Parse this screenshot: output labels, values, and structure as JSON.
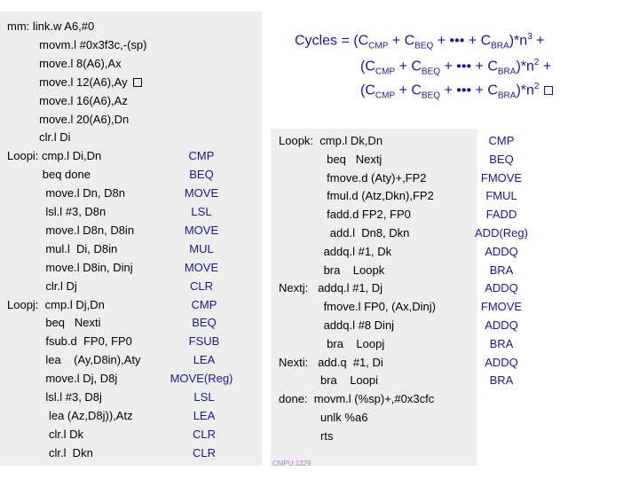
{
  "formula": {
    "prefix": "Cycles = ",
    "lines": [
      {
        "a": "C",
        "a_sub": "CMP",
        "b": "C",
        "b_sub": "BEQ",
        "dots": "•••",
        "c": "C",
        "c_sub": "BRA",
        "exp": "3",
        "tail": "+"
      },
      {
        "a": "C",
        "a_sub": "CMP",
        "b": "C",
        "b_sub": "BEQ",
        "dots": "•••",
        "c": "C",
        "c_sub": "BRA",
        "exp": "2",
        "tail": "+"
      },
      {
        "a": "C",
        "a_sub": "CMP",
        "b": "C",
        "b_sub": "BEQ",
        "dots": "•••",
        "c": "C",
        "c_sub": "BRA",
        "exp": "2",
        "tail": ""
      }
    ]
  },
  "left_code": [
    "mm: link.w A6,#0",
    "          movm.l #0x3f3c,-(sp)",
    "          move.l 8(A6),Ax",
    "          move.l 12(A6),Ay",
    "          move.l 16(A6),Az",
    "          move.l 20(A6),Dn",
    "          clr.l Di",
    "Loopi: cmp.l Di,Dn",
    "           beq done",
    "            move.l Dn, D8n",
    "            lsl.l #3, D8n",
    "            move.l D8n, D8in",
    "            mul.l  Di, D8in",
    "            move.l D8in, Dinj",
    "            clr.l Dj",
    "Loopj:  cmp.l Dj,Dn",
    "            beq   Nexti",
    "            fsub.d  FP0, FP0",
    "            lea    (Ay,D8in),Aty",
    "            move.l Dj, D8j",
    "            lsl.l #3, D8j",
    "             lea (Az,D8j)),Atz",
    "             clr.l Dk",
    "             clr.l  Dkn"
  ],
  "left_classes": [
    "CMP",
    "BEQ",
    "MOVE",
    "LSL",
    "MOVE",
    "MUL",
    "MOVE",
    "CLR",
    "CMP",
    "BEQ",
    "FSUB",
    "LEA",
    "MOVE(Reg)",
    "LSL",
    "LEA",
    "CLR",
    "CLR"
  ],
  "right_code": [
    "Loopk:  cmp.l Dk,Dn",
    "               beq   Nextj",
    "               fmove.d (Aty)+,FP2",
    "               fmul.d (Atz,Dkn),FP2",
    "               fadd.d FP2, FP0",
    "                add.l  Dn8, Dkn",
    "              addq.l #1, Dk",
    "              bra    Loopk",
    "Nextj:   addq.l #1, Dj",
    "              fmove.l FP0, (Ax,Dinj)",
    "              addq.l #8 Dinj",
    "               bra    Loopj",
    "Nexti:   add.q  #1, Di",
    "             bra    Loopi",
    "done:  movm.l (%sp)+,#0x3cfc",
    "             unlk %a6",
    "             rts"
  ],
  "right_classes": [
    "CMP",
    "BEQ",
    "FMOVE",
    "FMUL",
    "FADD",
    "ADD(Reg)",
    "ADDQ",
    "BRA",
    "ADDQ",
    "FMOVE",
    "ADDQ",
    "BRA",
    "ADDQ",
    "BRA"
  ],
  "footer": "CMPU 1229"
}
